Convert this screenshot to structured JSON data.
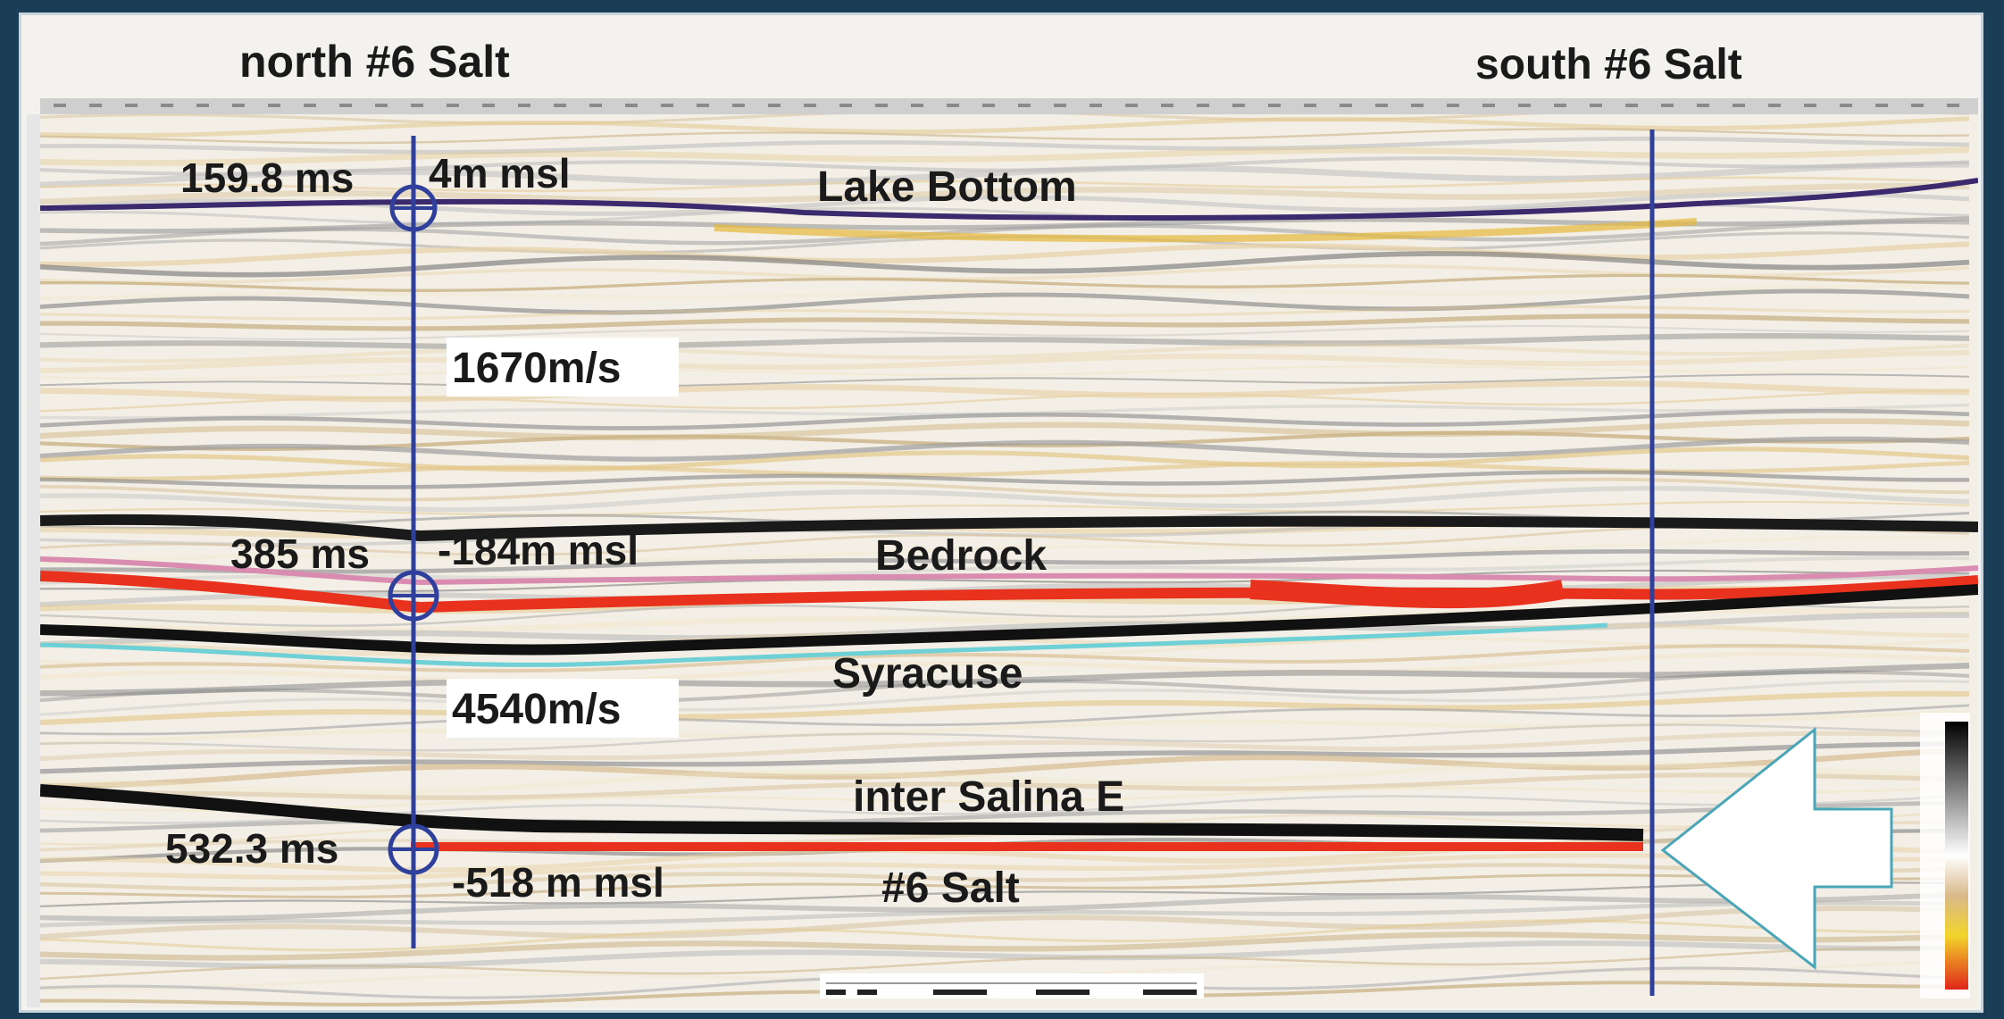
{
  "header": {
    "north_label": "north #6 Salt",
    "south_label": "south #6 Salt"
  },
  "wells": {
    "north": {
      "picks": [
        {
          "time": "159.8 ms",
          "depth": "4m  msl"
        },
        {
          "time": "385 ms",
          "depth": "-184m msl"
        },
        {
          "time": "532.3 ms",
          "depth": "-518 m msl"
        }
      ],
      "velocities": [
        "1670m/s",
        "4540m/s"
      ]
    }
  },
  "horizons": [
    {
      "name": "Lake Bottom",
      "color": "#3b2a6e"
    },
    {
      "name": "Bedrock",
      "color": "#d98cb0"
    },
    {
      "name": "Syracuse",
      "color": "#6fd0d6"
    },
    {
      "name": "inter Salina E",
      "color": "#111111"
    },
    {
      "name": "#6 Salt",
      "color": "#e8321e"
    }
  ],
  "colors": {
    "frame": "#1b3e57",
    "well_line": "#2e3f9c",
    "arrow_stroke": "#4aa5b8"
  },
  "icons": {
    "arrow": "left-arrow-icon",
    "well_marker": "circle-crosshair-icon"
  }
}
